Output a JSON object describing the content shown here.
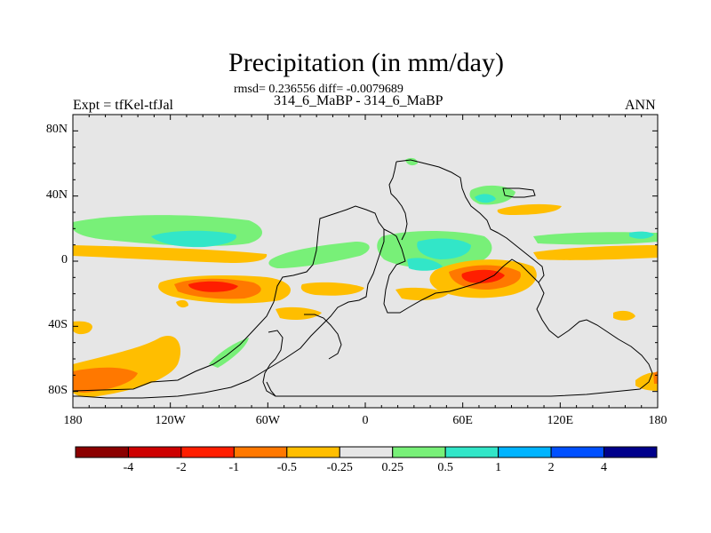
{
  "title": "Precipitation (in mm/day)",
  "stats_line": "rmsd= 0.236556 diff= -0.0079689",
  "subtitle": "314_6_MaBP - 314_6_MaBP",
  "left_label": "Expt = tfKel-tfJal",
  "right_label": "ANN",
  "map": {
    "projection": "cylindrical equidistant",
    "lon_range": [
      -180,
      180
    ],
    "lat_range": [
      -90,
      90
    ],
    "background_color": "#e6e6e6",
    "lat_ticks": [
      {
        "value": 80,
        "label": "80N"
      },
      {
        "value": 40,
        "label": "40N"
      },
      {
        "value": 0,
        "label": "0"
      },
      {
        "value": -40,
        "label": "40S"
      },
      {
        "value": -80,
        "label": "80S"
      }
    ],
    "lon_ticks": [
      {
        "value": -180,
        "label": "180"
      },
      {
        "value": -120,
        "label": "120W"
      },
      {
        "value": -60,
        "label": "60W"
      },
      {
        "value": 0,
        "label": "0"
      },
      {
        "value": 60,
        "label": "60E"
      },
      {
        "value": 120,
        "label": "120E"
      },
      {
        "value": 180,
        "label": "180"
      }
    ]
  },
  "colorbar": {
    "labels": [
      "-4",
      "-2",
      "-1",
      "-0.5",
      "-0.25",
      "0.25",
      "0.5",
      "1",
      "2",
      "4"
    ],
    "colors": [
      "#8b0000",
      "#cd0000",
      "#ff1e00",
      "#ff7800",
      "#ffbe00",
      "#e6e6e6",
      "#78f078",
      "#32e6c8",
      "#00b4ff",
      "#0050ff",
      "#00008b"
    ]
  }
}
